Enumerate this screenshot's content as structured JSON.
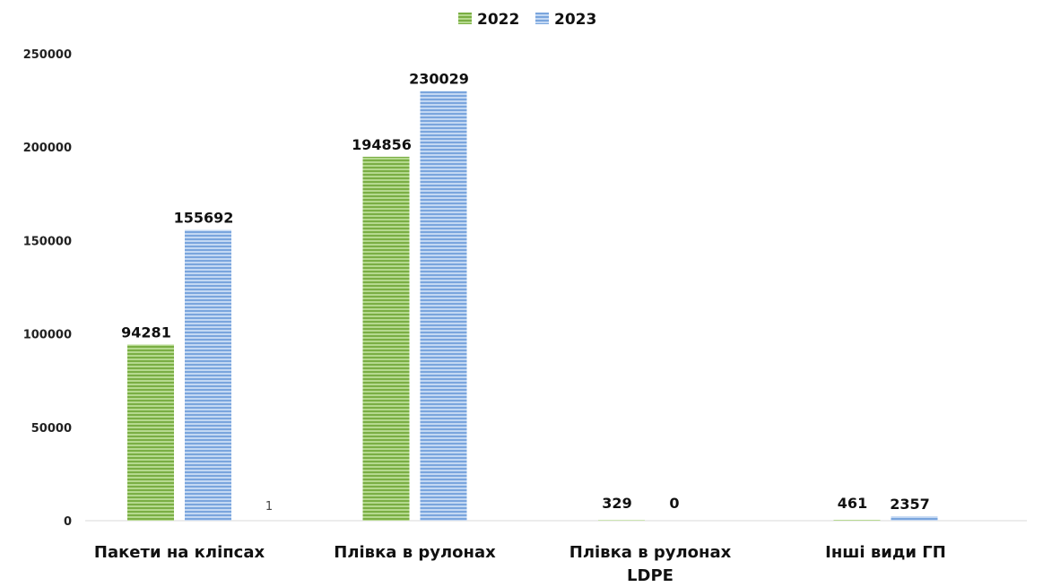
{
  "chart_data": {
    "type": "bar",
    "title": "",
    "xlabel": "",
    "ylabel": "",
    "ylim": [
      0,
      250000
    ],
    "yticks": [
      0,
      50000,
      100000,
      150000,
      200000,
      250000
    ],
    "grid": false,
    "legend_position": "top-center",
    "categories": [
      [
        "Пакети на кліпсах"
      ],
      [
        "Плівка в рулонах"
      ],
      [
        "Плівка в рулонах",
        "LDPE"
      ],
      [
        "Інші види ГП"
      ]
    ],
    "series": [
      {
        "name": "2022",
        "color": "#8cbf5a",
        "values": [
          94281,
          194856,
          329,
          461
        ],
        "labels": [
          "94281",
          "194856",
          "329",
          "461"
        ]
      },
      {
        "name": "2023",
        "color": "#8fb4e3",
        "values": [
          155692,
          230029,
          0,
          2357
        ],
        "labels": [
          "155692",
          "230029",
          "0",
          "2357"
        ]
      }
    ],
    "annotations": [
      {
        "category_index": 0,
        "slot": 3,
        "value": 1,
        "text": "1"
      }
    ]
  }
}
